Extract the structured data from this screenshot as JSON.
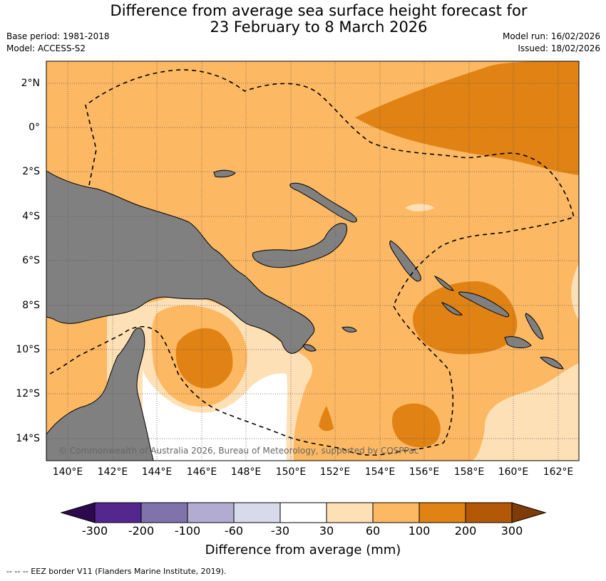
{
  "title_line1": "Difference from average sea surface height forecast for",
  "title_line2": "23 February to 8 March 2026",
  "base_period": "Base period: 1981-2018",
  "model": "Model: ACCESS-S2",
  "model_run": "Model run: 16/02/2026",
  "issued": "Issued: 18/02/2026",
  "copyright": "© Commonwealth of Australia 2026, Bureau of Meteorology, supported by COSPPac",
  "footnote": "-- -- -- EEZ border V11 (Flanders Marine Institute, 2019).",
  "lat_labels": [
    "2°N",
    "0°",
    "2°S",
    "4°S",
    "6°S",
    "8°S",
    "10°S",
    "12°S",
    "14°S"
  ],
  "lon_labels": [
    "140°E",
    "142°E",
    "144°E",
    "146°E",
    "148°E",
    "150°E",
    "152°E",
    "154°E",
    "156°E",
    "158°E",
    "160°E",
    "162°E"
  ],
  "colorbar": {
    "title": "Difference from average (mm)",
    "tick_labels": [
      "-300",
      "-200",
      "-100",
      "-60",
      "-30",
      "30",
      "60",
      "100",
      "200",
      "300"
    ],
    "colors": [
      "#2d0a4e",
      "#54278f",
      "#8073ac",
      "#b2abd2",
      "#d8daeb",
      "#ffffff",
      "#fee0b6",
      "#fdb863",
      "#e08214",
      "#b35806",
      "#7f3b08"
    ]
  },
  "legend_colors": {
    "land": "#808080",
    "band_30_60": "#fee0b6",
    "band_60_100": "#fdb863",
    "band_100_200": "#e08214"
  }
}
